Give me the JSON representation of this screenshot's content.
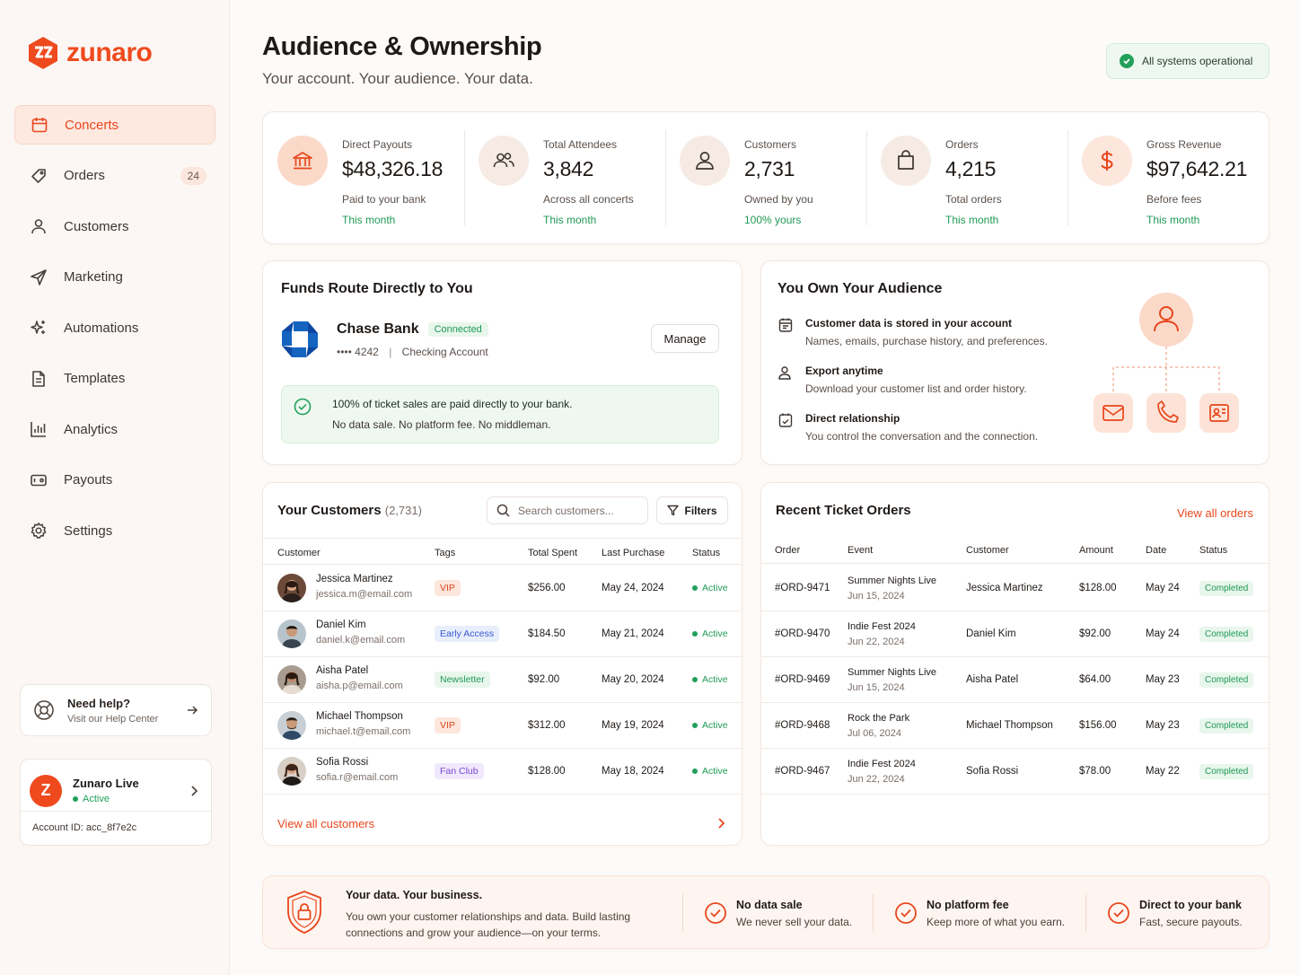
{
  "brand": {
    "name": "zunaro",
    "accent": "#ee4a1e"
  },
  "sidebar": {
    "items": [
      {
        "label": "Concerts",
        "icon": "calendar-icon",
        "active": true
      },
      {
        "label": "Orders",
        "icon": "tag-icon",
        "badge": "24"
      },
      {
        "label": "Customers",
        "icon": "user-icon"
      },
      {
        "label": "Marketing",
        "icon": "send-icon"
      },
      {
        "label": "Automations",
        "icon": "sparkles-icon"
      },
      {
        "label": "Templates",
        "icon": "document-icon"
      },
      {
        "label": "Analytics",
        "icon": "bar-chart-icon"
      },
      {
        "label": "Payouts",
        "icon": "wallet-icon"
      },
      {
        "label": "Settings",
        "icon": "gear-icon"
      }
    ],
    "help": {
      "title": "Need help?",
      "subtitle": "Visit our Help Center"
    },
    "account": {
      "avatar_letter": "Z",
      "name": "Zunaro Live",
      "status": "Active",
      "account_id": "Account ID: acc_8f7e2c"
    }
  },
  "header": {
    "title": "Audience & Ownership",
    "subtitle": "Your account. Your audience. Your data.",
    "system_status": "All systems operational"
  },
  "stats": [
    {
      "label": "Direct Payouts",
      "value": "$48,326.18",
      "desc": "Paid to your bank",
      "period": "This month",
      "icon": "bank-icon"
    },
    {
      "label": "Total Attendees",
      "value": "3,842",
      "desc": "Across all concerts",
      "period": "This month",
      "icon": "users-icon"
    },
    {
      "label": "Customers",
      "value": "2,731",
      "desc": "Owned by you",
      "period": "100% yours",
      "icon": "user-icon"
    },
    {
      "label": "Orders",
      "value": "4,215",
      "desc": "Total orders",
      "period": "This month",
      "icon": "shopping-bag-icon"
    },
    {
      "label": "Gross Revenue",
      "value": "$97,642.21",
      "desc": "Before fees",
      "period": "This month",
      "icon": "dollar-icon"
    }
  ],
  "funds": {
    "title": "Funds Route Directly to You",
    "bank_name": "Chase Bank",
    "status": "Connected",
    "account_mask": "•••• 4242",
    "separator": "|",
    "account_type": "Checking Account",
    "manage_label": "Manage",
    "note_line1": "100% of ticket sales are paid directly to your bank.",
    "note_line2": "No data sale. No platform fee. No middleman."
  },
  "own_audience": {
    "title": "You Own Your Audience",
    "items": [
      {
        "title": "Customer data is stored in your account",
        "desc": "Names, emails, purchase history, and preferences.",
        "icon": "database-icon"
      },
      {
        "title": "Export anytime",
        "desc": "Download your customer list and order history.",
        "icon": "user-export-icon"
      },
      {
        "title": "Direct relationship",
        "desc": "You control the conversation and the connection.",
        "icon": "calendar-check-icon"
      }
    ]
  },
  "customers": {
    "title": "Your Customers",
    "count": "(2,731)",
    "search_placeholder": "Search customers...",
    "filters_label": "Filters",
    "columns": [
      "Customer",
      "Tags",
      "Total Spent",
      "Last Purchase",
      "Status"
    ],
    "rows": [
      {
        "name": "Jessica Martinez",
        "email": "jessica.m@email.com",
        "tag": "VIP",
        "tag_style": "vip",
        "spent": "$256.00",
        "last": "May 24, 2024",
        "status": "Active"
      },
      {
        "name": "Daniel Kim",
        "email": "daniel.k@email.com",
        "tag": "Early Access",
        "tag_style": "blue",
        "spent": "$184.50",
        "last": "May 21, 2024",
        "status": "Active"
      },
      {
        "name": "Aisha Patel",
        "email": "aisha.p@email.com",
        "tag": "Newsletter",
        "tag_style": "green",
        "spent": "$92.00",
        "last": "May 20, 2024",
        "status": "Active"
      },
      {
        "name": "Michael Thompson",
        "email": "michael.t@email.com",
        "tag": "VIP",
        "tag_style": "vip",
        "spent": "$312.00",
        "last": "May 19, 2024",
        "status": "Active"
      },
      {
        "name": "Sofia Rossi",
        "email": "sofia.r@email.com",
        "tag": "Fan Club",
        "tag_style": "purple",
        "spent": "$128.00",
        "last": "May 18, 2024",
        "status": "Active"
      }
    ],
    "view_all": "View all customers"
  },
  "orders": {
    "title": "Recent Ticket Orders",
    "view_all": "View all orders",
    "columns": [
      "Order",
      "Event",
      "Customer",
      "Amount",
      "Date",
      "Status"
    ],
    "rows": [
      {
        "id": "#ORD-9471",
        "event": "Summer Nights Live",
        "event_date": "Jun 15, 2024",
        "customer": "Jessica Martinez",
        "amount": "$128.00",
        "date": "May 24",
        "status": "Completed"
      },
      {
        "id": "#ORD-9470",
        "event": "Indie Fest 2024",
        "event_date": "Jun 22, 2024",
        "customer": "Daniel Kim",
        "amount": "$92.00",
        "date": "May 24",
        "status": "Completed"
      },
      {
        "id": "#ORD-9469",
        "event": "Summer Nights Live",
        "event_date": "Jun 15, 2024",
        "customer": "Aisha Patel",
        "amount": "$64.00",
        "date": "May 23",
        "status": "Completed"
      },
      {
        "id": "#ORD-9468",
        "event": "Rock the Park",
        "event_date": "Jul 06, 2024",
        "customer": "Michael Thompson",
        "amount": "$156.00",
        "date": "May 23",
        "status": "Completed"
      },
      {
        "id": "#ORD-9467",
        "event": "Indie Fest 2024",
        "event_date": "Jun 22, 2024",
        "customer": "Sofia Rossi",
        "amount": "$78.00",
        "date": "May 22",
        "status": "Completed"
      }
    ]
  },
  "banner": {
    "title": "Your data. Your business.",
    "text_line1": "You own your customer relationships and data. Build lasting",
    "text_line2": "connections and grow your audience—on your terms.",
    "features": [
      {
        "title": "No data sale",
        "sub": "We never sell your data."
      },
      {
        "title": "No platform fee",
        "sub": "Keep more of what you earn."
      },
      {
        "title": "Direct to your bank",
        "sub": "Fast, secure payouts."
      }
    ]
  }
}
